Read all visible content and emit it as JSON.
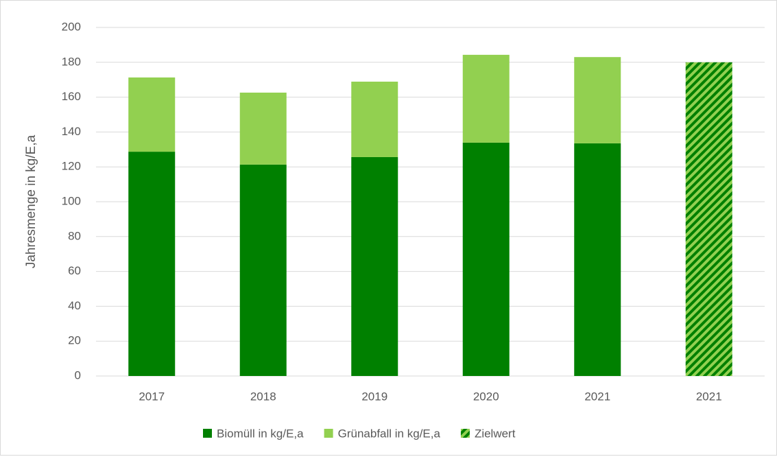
{
  "chart_data": {
    "type": "stacked_bar",
    "y_label": "Jahresmenge in kg/E,a",
    "categories": [
      "2017",
      "2018",
      "2019",
      "2020",
      "2021",
      "2021"
    ],
    "series": [
      {
        "name": "Biomüll in kg/E,a",
        "color": "#008000",
        "values": [
          128.7,
          121.3,
          125.6,
          133.9,
          133.5,
          null
        ]
      },
      {
        "name": "Grünabfall in kg/E,a",
        "color": "#92d050",
        "values": [
          42.6,
          41.3,
          43.3,
          50.4,
          49.5,
          null
        ]
      },
      {
        "name": "Zielwert",
        "color": "#92d050",
        "hatch": "#008000",
        "values": [
          null,
          null,
          null,
          null,
          null,
          180
        ]
      }
    ],
    "ylim": [
      0,
      200
    ],
    "yticks": [
      0,
      20,
      40,
      60,
      80,
      100,
      120,
      140,
      160,
      180,
      200
    ],
    "grid": true,
    "legend": "bottom"
  }
}
